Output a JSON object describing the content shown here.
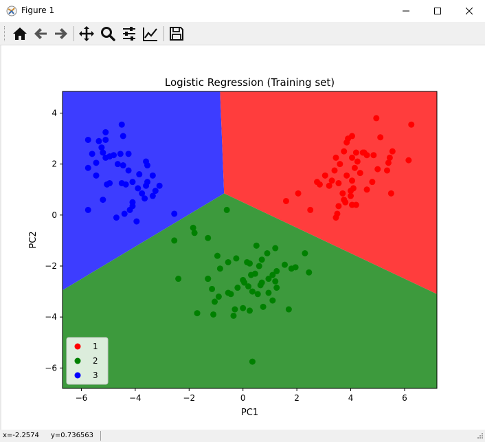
{
  "window": {
    "title": "Figure 1",
    "minimize_icon": "minimize-icon",
    "maximize_icon": "maximize-icon",
    "close_icon": "close-icon"
  },
  "toolbar": {
    "items": [
      {
        "name": "home-button",
        "icon": "home-icon"
      },
      {
        "name": "back-button",
        "icon": "arrow-left-icon"
      },
      {
        "name": "forward-button",
        "icon": "arrow-right-icon"
      },
      {
        "name": "pan-button",
        "icon": "move-icon"
      },
      {
        "name": "zoom-button",
        "icon": "magnifier-icon"
      },
      {
        "name": "subplots-button",
        "icon": "sliders-icon"
      },
      {
        "name": "edit-axis-button",
        "icon": "line-chart-icon"
      },
      {
        "name": "save-button",
        "icon": "floppy-disk-icon"
      }
    ]
  },
  "status": {
    "x_text": "x=-2.2574",
    "y_text": "y=0.736563"
  },
  "colors": {
    "region1": "#ff3d3d",
    "region2": "#3d9a3d",
    "region3": "#3d3dff",
    "class1": "#ff0000",
    "class2": "#008000",
    "class3": "#0000ff"
  },
  "chart_data": {
    "type": "scatter",
    "title": "Logistic Regression (Training set)",
    "xlabel": "PC1",
    "ylabel": "PC2",
    "xlim": [
      -6.7,
      7.2
    ],
    "ylim": [
      -6.8,
      4.85
    ],
    "xticks": [
      -6,
      -4,
      -2,
      0,
      2,
      4,
      6
    ],
    "yticks": [
      -6,
      -4,
      -2,
      0,
      2,
      4
    ],
    "xtick_labels": [
      "−6",
      "−4",
      "−2",
      "0",
      "2",
      "4",
      "6"
    ],
    "ytick_labels": [
      "−6",
      "−4",
      "−2",
      "0",
      "2",
      "4"
    ],
    "grid": false,
    "legend_position": "lower-left",
    "decision_regions": {
      "junction": [
        -0.7,
        0.85
      ],
      "boundary_top": [
        -0.85,
        4.85
      ],
      "boundary_left": [
        -6.7,
        -2.95
      ],
      "boundary_right": [
        7.2,
        -3.1
      ],
      "region_top_right": "1",
      "region_bottom": "2",
      "region_top_left": "3"
    },
    "series": [
      {
        "name": "1",
        "points": [
          [
            3.9,
            3.0
          ],
          [
            4.05,
            3.1
          ],
          [
            4.5,
            2.45
          ],
          [
            4.85,
            2.35
          ],
          [
            5.55,
            2.5
          ],
          [
            6.25,
            3.55
          ],
          [
            6.15,
            2.15
          ],
          [
            5.4,
            2.05
          ],
          [
            5.45,
            2.25
          ],
          [
            4.6,
            2.35
          ],
          [
            4.2,
            2.45
          ],
          [
            4.95,
            3.8
          ],
          [
            5.1,
            3.05
          ],
          [
            3.85,
            2.85
          ],
          [
            3.75,
            2.5
          ],
          [
            4.45,
            2.45
          ],
          [
            4.25,
            2.1
          ],
          [
            4.05,
            2.25
          ],
          [
            3.6,
            2.0
          ],
          [
            3.45,
            2.25
          ],
          [
            5.5,
            0.85
          ],
          [
            3.4,
            1.75
          ],
          [
            3.05,
            1.55
          ],
          [
            3.2,
            1.15
          ],
          [
            2.75,
            1.3
          ],
          [
            2.85,
            1.2
          ],
          [
            3.3,
            1.35
          ],
          [
            3.55,
            1.25
          ],
          [
            3.85,
            1.55
          ],
          [
            4.15,
            1.85
          ],
          [
            4.35,
            1.65
          ],
          [
            4.1,
            1.05
          ],
          [
            4.05,
            1.35
          ],
          [
            4.0,
            0.75
          ],
          [
            3.75,
            0.6
          ],
          [
            3.8,
            0.5
          ],
          [
            3.55,
            0.35
          ],
          [
            3.5,
            0.05
          ],
          [
            3.45,
            -0.1
          ],
          [
            4.05,
            0.4
          ],
          [
            4.2,
            0.4
          ],
          [
            4.6,
            1.0
          ],
          [
            4.8,
            1.3
          ],
          [
            2.5,
            0.2
          ],
          [
            2.05,
            0.85
          ],
          [
            1.6,
            0.55
          ],
          [
            4.0,
            0.95
          ],
          [
            5.0,
            1.8
          ],
          [
            5.35,
            1.75
          ],
          [
            3.7,
            0.85
          ]
        ]
      },
      {
        "name": "2",
        "points": [
          [
            -0.6,
            0.2
          ],
          [
            -1.85,
            -0.5
          ],
          [
            -1.8,
            -0.7
          ],
          [
            -2.55,
            -1.0
          ],
          [
            -2.4,
            -2.5
          ],
          [
            -1.3,
            -0.9
          ],
          [
            -0.95,
            -1.6
          ],
          [
            -0.85,
            -2.1
          ],
          [
            -0.55,
            -1.85
          ],
          [
            -0.25,
            -1.7
          ],
          [
            0.5,
            -1.2
          ],
          [
            0.15,
            -1.85
          ],
          [
            0.25,
            -1.9
          ],
          [
            -1.3,
            -2.5
          ],
          [
            -1.15,
            -2.9
          ],
          [
            -1.05,
            -3.4
          ],
          [
            -0.9,
            -3.2
          ],
          [
            -0.55,
            -3.05
          ],
          [
            -0.45,
            -3.1
          ],
          [
            -0.2,
            -2.85
          ],
          [
            0.05,
            -2.65
          ],
          [
            0.0,
            -2.55
          ],
          [
            0.3,
            -2.35
          ],
          [
            0.45,
            -2.3
          ],
          [
            0.6,
            -2.0
          ],
          [
            0.7,
            -1.75
          ],
          [
            0.9,
            -1.5
          ],
          [
            1.2,
            -1.3
          ],
          [
            1.55,
            -1.95
          ],
          [
            1.8,
            -2.1
          ],
          [
            1.95,
            -2.05
          ],
          [
            2.45,
            -2.25
          ],
          [
            1.25,
            -2.2
          ],
          [
            1.1,
            -2.35
          ],
          [
            0.95,
            -2.5
          ],
          [
            0.7,
            -2.65
          ],
          [
            0.65,
            -2.75
          ],
          [
            0.35,
            -3.0
          ],
          [
            0.55,
            -3.1
          ],
          [
            0.95,
            -3.05
          ],
          [
            1.25,
            -2.85
          ],
          [
            1.1,
            -3.35
          ],
          [
            0.75,
            -3.6
          ],
          [
            0.25,
            -3.75
          ],
          [
            0.0,
            -3.65
          ],
          [
            -0.3,
            -3.7
          ],
          [
            -0.35,
            -3.95
          ],
          [
            -1.7,
            -3.85
          ],
          [
            -1.1,
            -3.9
          ],
          [
            1.7,
            -3.7
          ],
          [
            2.3,
            -1.5
          ],
          [
            -1.3,
            -2.5
          ],
          [
            0.35,
            -5.75
          ],
          [
            0.2,
            -2.8
          ],
          [
            1.2,
            -2.6
          ]
        ]
      },
      {
        "name": "3",
        "points": [
          [
            -5.45,
            2.05
          ],
          [
            -5.6,
            2.4
          ],
          [
            -5.75,
            2.95
          ],
          [
            -5.1,
            3.25
          ],
          [
            -5.35,
            2.9
          ],
          [
            -5.1,
            2.95
          ],
          [
            -4.5,
            3.55
          ],
          [
            -4.45,
            3.1
          ],
          [
            -4.25,
            2.4
          ],
          [
            -4.55,
            2.4
          ],
          [
            -4.8,
            2.35
          ],
          [
            -4.95,
            2.3
          ],
          [
            -5.1,
            2.25
          ],
          [
            -5.25,
            2.65
          ],
          [
            -5.2,
            2.45
          ],
          [
            -4.65,
            2.0
          ],
          [
            -4.45,
            1.95
          ],
          [
            -4.25,
            1.75
          ],
          [
            -3.85,
            1.6
          ],
          [
            -3.55,
            1.95
          ],
          [
            -3.6,
            2.1
          ],
          [
            -3.35,
            1.55
          ],
          [
            -3.6,
            1.15
          ],
          [
            -3.1,
            1.15
          ],
          [
            -4.1,
            1.3
          ],
          [
            -4.35,
            1.2
          ],
          [
            -4.5,
            1.25
          ],
          [
            -4.95,
            1.25
          ],
          [
            -5.05,
            1.2
          ],
          [
            -5.45,
            1.55
          ],
          [
            -5.75,
            1.85
          ],
          [
            -3.9,
            1.05
          ],
          [
            -3.75,
            0.85
          ],
          [
            -3.35,
            0.75
          ],
          [
            -3.65,
            0.65
          ],
          [
            -4.1,
            0.5
          ],
          [
            -4.1,
            0.35
          ],
          [
            -4.2,
            0.2
          ],
          [
            -4.4,
            0.05
          ],
          [
            -4.7,
            -0.1
          ],
          [
            -5.2,
            0.6
          ],
          [
            -5.75,
            0.2
          ],
          [
            -3.95,
            -0.25
          ],
          [
            -2.55,
            0.05
          ],
          [
            -3.55,
            1.3
          ],
          [
            -3.25,
            0.95
          ]
        ]
      }
    ]
  }
}
